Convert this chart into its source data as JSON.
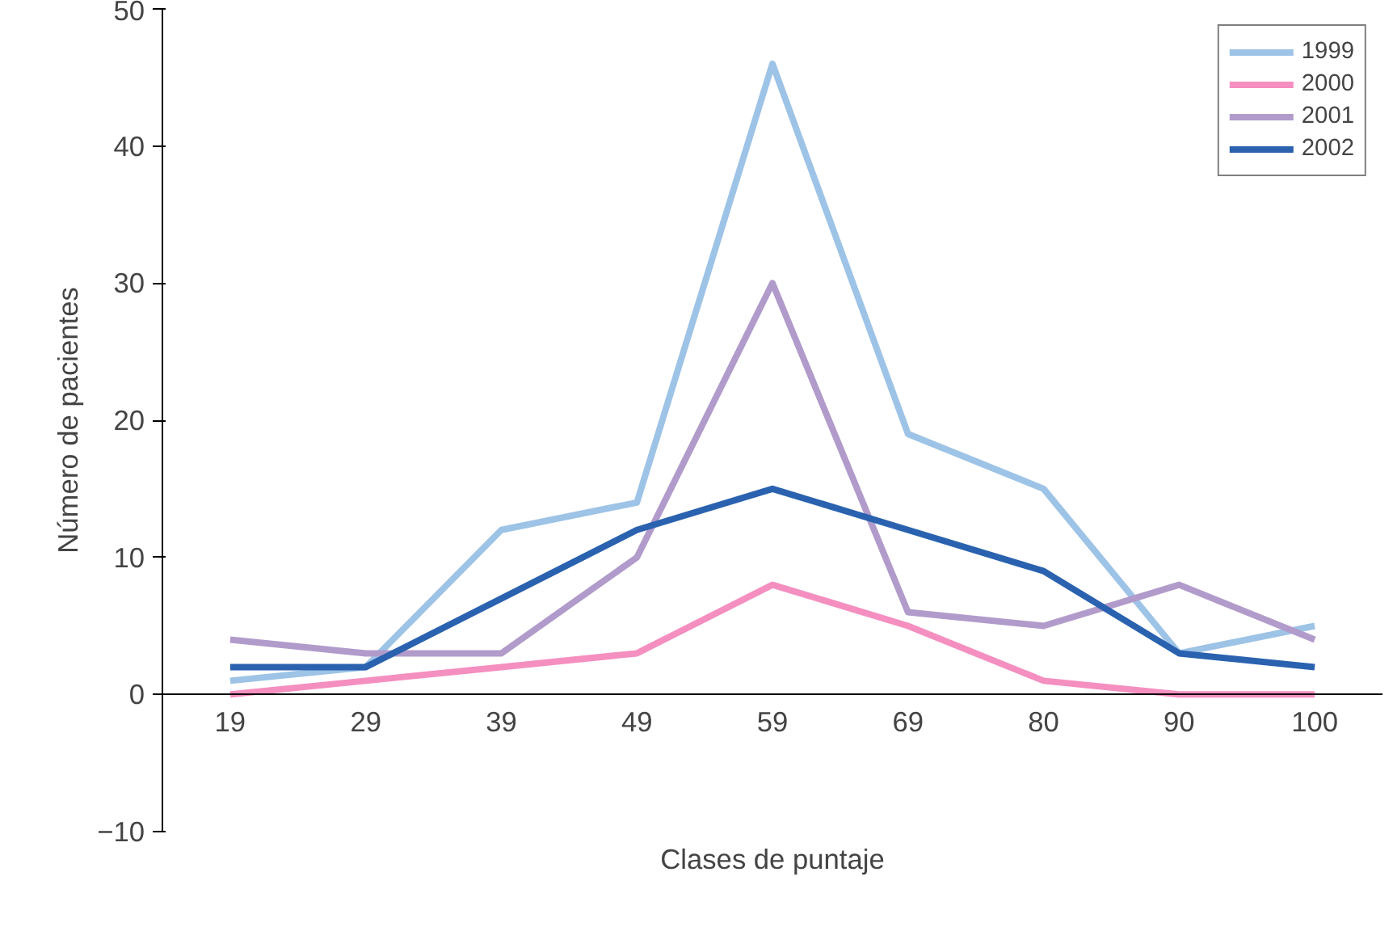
{
  "chart_data": {
    "type": "line",
    "xlabel": "Clases de puntaje",
    "ylabel": "Número de pacientes",
    "categories": [
      "19",
      "29",
      "39",
      "49",
      "59",
      "69",
      "80",
      "90",
      "100"
    ],
    "ylim": [
      -10,
      50
    ],
    "yticks": [
      -10,
      0,
      10,
      20,
      30,
      40,
      50
    ],
    "grid": false,
    "legend": "top right",
    "series": [
      {
        "name": "1999",
        "color": "#9dc3e6",
        "values": [
          1,
          2,
          12,
          14,
          46,
          19,
          15,
          3,
          5
        ]
      },
      {
        "name": "2000",
        "color": "#f48fc0",
        "values": [
          0,
          1,
          2,
          3,
          8,
          5,
          1,
          0,
          0
        ]
      },
      {
        "name": "2001",
        "color": "#b19bcb",
        "values": [
          4,
          3,
          3,
          10,
          30,
          6,
          5,
          8,
          4
        ]
      },
      {
        "name": "2002",
        "color": "#2a62b0",
        "values": [
          2,
          2,
          7,
          12,
          15,
          12,
          9,
          3,
          2
        ]
      }
    ]
  }
}
